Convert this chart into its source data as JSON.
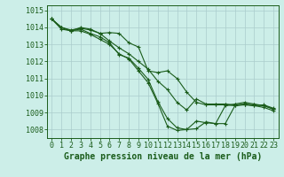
{
  "xlabel": "Graphe pression niveau de la mer (hPa)",
  "background_color": "#cceee8",
  "grid_color": "#aacccc",
  "line_color": "#1a5c1a",
  "spine_color": "#1a5c1a",
  "ylim": [
    1007.5,
    1015.3
  ],
  "xlim": [
    -0.5,
    23.5
  ],
  "yticks": [
    1008,
    1009,
    1010,
    1011,
    1012,
    1013,
    1014,
    1015
  ],
  "xticks": [
    0,
    1,
    2,
    3,
    4,
    5,
    6,
    7,
    8,
    9,
    10,
    11,
    12,
    13,
    14,
    15,
    16,
    17,
    18,
    19,
    20,
    21,
    22,
    23
  ],
  "tick_fontsize": 6.0,
  "xlabel_fontsize": 7.0,
  "lines": [
    [
      1014.5,
      1014.0,
      1013.85,
      1013.95,
      1013.85,
      1013.65,
      1013.7,
      1013.65,
      1013.1,
      1012.85,
      1011.45,
      1011.35,
      1011.45,
      1011.0,
      1010.2,
      1009.6,
      1009.45,
      1009.45,
      1009.45,
      1009.4,
      1009.45,
      1009.4,
      1009.45,
      1009.25
    ],
    [
      1014.5,
      1013.9,
      1013.8,
      1014.0,
      1013.9,
      1013.65,
      1013.2,
      1012.8,
      1012.45,
      1012.0,
      1011.55,
      1010.85,
      1010.35,
      1009.6,
      1009.15,
      1009.8,
      1009.5,
      1009.5,
      1009.5,
      1009.45,
      1009.5,
      1009.45,
      1009.4,
      1009.2
    ],
    [
      1014.5,
      1014.0,
      1013.8,
      1013.9,
      1013.65,
      1013.45,
      1013.1,
      1012.4,
      1012.2,
      1011.6,
      1010.95,
      1009.65,
      1008.65,
      1008.1,
      1008.0,
      1008.5,
      1008.4,
      1008.35,
      1009.4,
      1009.5,
      1009.6,
      1009.5,
      1009.4,
      1009.2
    ],
    [
      1014.5,
      1014.0,
      1013.8,
      1013.8,
      1013.6,
      1013.3,
      1013.0,
      1012.45,
      1012.15,
      1011.45,
      1010.75,
      1009.55,
      1008.2,
      1007.95,
      1008.0,
      1008.05,
      1008.45,
      1008.35,
      1008.35,
      1009.4,
      1009.5,
      1009.4,
      1009.3,
      1009.1
    ]
  ]
}
